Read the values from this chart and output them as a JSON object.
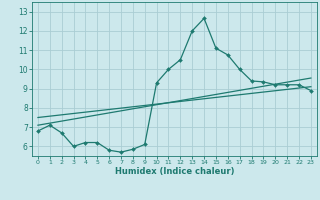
{
  "xlabel": "Humidex (Indice chaleur)",
  "bg_color": "#cce8ec",
  "grid_color": "#aacdd4",
  "line_color": "#1e7a70",
  "xlim": [
    -0.5,
    23.5
  ],
  "ylim": [
    5.5,
    13.5
  ],
  "xticks": [
    0,
    1,
    2,
    3,
    4,
    5,
    6,
    7,
    8,
    9,
    10,
    11,
    12,
    13,
    14,
    15,
    16,
    17,
    18,
    19,
    20,
    21,
    22,
    23
  ],
  "yticks": [
    6,
    7,
    8,
    9,
    10,
    11,
    12,
    13
  ],
  "line1_x": [
    0,
    1,
    2,
    3,
    4,
    5,
    6,
    7,
    8,
    9,
    10,
    11,
    12,
    13,
    14,
    15,
    16,
    17,
    18,
    19,
    20,
    21,
    22,
    23
  ],
  "line1_y": [
    6.8,
    7.1,
    6.7,
    6.0,
    6.2,
    6.2,
    5.8,
    5.7,
    5.85,
    6.1,
    9.3,
    10.0,
    10.5,
    12.0,
    12.65,
    11.1,
    10.75,
    10.0,
    9.4,
    9.35,
    9.2,
    9.2,
    9.2,
    8.9
  ],
  "line2_x": [
    0,
    23
  ],
  "line2_y": [
    7.1,
    9.55
  ],
  "line3_x": [
    0,
    23
  ],
  "line3_y": [
    7.5,
    9.1
  ]
}
